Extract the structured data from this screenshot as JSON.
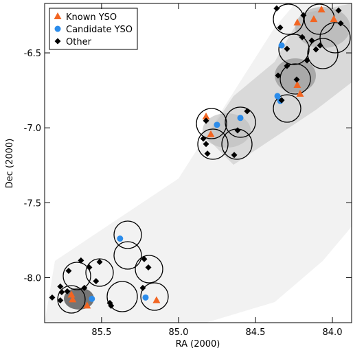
{
  "chart_data": {
    "type": "scatter",
    "x_label": "RA (2000)",
    "y_label": "Dec (2000)",
    "xlim": [
      85.87,
      83.875
    ],
    "ylim": [
      -8.3,
      -6.17
    ],
    "xticks": [
      85.5,
      {
        "value": 85,
        "label": "85.0"
      },
      84.5,
      {
        "value": 84,
        "label": "84.0"
      }
    ],
    "yticks": [
      -6.5,
      {
        "value": -7,
        "label": "-7.0"
      },
      -7.5,
      {
        "value": -8,
        "label": "-8.0"
      }
    ],
    "legend": "upper left",
    "series": [
      {
        "name": "Known YSO",
        "color": "#f26522",
        "marker": "triangle",
        "x": [
          84.071,
          84.121,
          83.991,
          84.228,
          84.228,
          84.21,
          84.821,
          84.79,
          85.696,
          85.688,
          85.594,
          85.143
        ],
        "y": [
          -6.212,
          -6.276,
          -6.276,
          -6.299,
          -6.715,
          -6.774,
          -6.925,
          -7.044,
          -8.114,
          -8.146,
          -8.187,
          -8.151
        ]
      },
      {
        "name": "Candidate YSO",
        "color": "#2b8ceb",
        "marker": "circle",
        "x": [
          84.33,
          84.357,
          84.339,
          84.75,
          84.598,
          85.38,
          85.214,
          85.563
        ],
        "y": [
          -6.45,
          -6.788,
          -6.82,
          -6.98,
          -6.934,
          -7.739,
          -8.132,
          -8.141
        ]
      },
      {
        "name": "Other",
        "color": "#000000",
        "marker": "diamond",
        "x": [
          84.362,
          83.96,
          84.188,
          83.946,
          84.339,
          84.196,
          84.134,
          84.08,
          84.295,
          84.107,
          84.165,
          84.295,
          84.353,
          84.232,
          84.33,
          84.554,
          84.821,
          84.839,
          84.821,
          84.812,
          84.616,
          84.638,
          85.58,
          85.513,
          85.714,
          85.634,
          85.768,
          85.821,
          85.759,
          85.768,
          85.723,
          85.536,
          85.612,
          85.446,
          85.223,
          85.196,
          85.232,
          85.438
        ],
        "y": [
          -6.203,
          -6.217,
          -6.249,
          -6.303,
          -6.331,
          -6.395,
          -6.418,
          -6.45,
          -6.473,
          -6.477,
          -6.55,
          -6.587,
          -6.651,
          -6.678,
          -6.816,
          -6.889,
          -6.953,
          -7.072,
          -7.108,
          -7.172,
          -7.017,
          -7.181,
          -7.931,
          -7.895,
          -7.954,
          -7.885,
          -8.059,
          -8.132,
          -8.096,
          -8.151,
          -8.091,
          -8.023,
          -8.068,
          -8.169,
          -7.876,
          -7.931,
          -8.068,
          -8.187
        ]
      }
    ]
  }
}
